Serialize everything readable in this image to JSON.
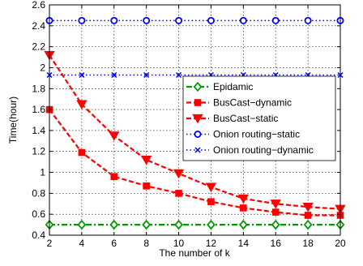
{
  "chart_data": {
    "type": "line",
    "title": "",
    "xlabel": "The number of k",
    "ylabel": "Time(hour)",
    "xlim": [
      2,
      20
    ],
    "ylim": [
      0.4,
      2.6
    ],
    "x": [
      2,
      4,
      6,
      8,
      10,
      12,
      14,
      16,
      18,
      20
    ],
    "x_ticks": [
      2,
      4,
      6,
      8,
      10,
      12,
      14,
      16,
      18,
      20
    ],
    "y_ticks": [
      0.4,
      0.6,
      0.8,
      1,
      1.2,
      1.4,
      1.6,
      1.8,
      2,
      2.2,
      2.4,
      2.6
    ],
    "grid": true,
    "legend_position": "right",
    "series": [
      {
        "name": "Epidamic",
        "color": "#009900",
        "line": "dashdot",
        "marker": "diamond",
        "values": [
          0.5,
          0.5,
          0.5,
          0.5,
          0.5,
          0.5,
          0.5,
          0.5,
          0.5,
          0.5
        ]
      },
      {
        "name": "BusCast−dynamic",
        "color": "#ff0000",
        "line": "dashed",
        "marker": "square",
        "values": [
          1.6,
          1.19,
          0.96,
          0.87,
          0.8,
          0.72,
          0.66,
          0.62,
          0.59,
          0.59
        ]
      },
      {
        "name": "BusCast−static",
        "color": "#ff0000",
        "line": "dashed",
        "marker": "triangle-down",
        "values": [
          2.12,
          1.65,
          1.35,
          1.12,
          0.99,
          0.86,
          0.75,
          0.7,
          0.67,
          0.65
        ]
      },
      {
        "name": "Onion routing−static",
        "color": "#0000ff",
        "line": "dotted",
        "marker": "circle",
        "values": [
          2.45,
          2.45,
          2.45,
          2.45,
          2.45,
          2.45,
          2.45,
          2.45,
          2.45,
          2.45
        ]
      },
      {
        "name": "Onion routing−dynamic",
        "color": "#0000ff",
        "line": "dotted",
        "marker": "x",
        "values": [
          1.93,
          1.93,
          1.93,
          1.93,
          1.93,
          1.93,
          1.93,
          1.93,
          1.93,
          1.93
        ]
      }
    ]
  }
}
